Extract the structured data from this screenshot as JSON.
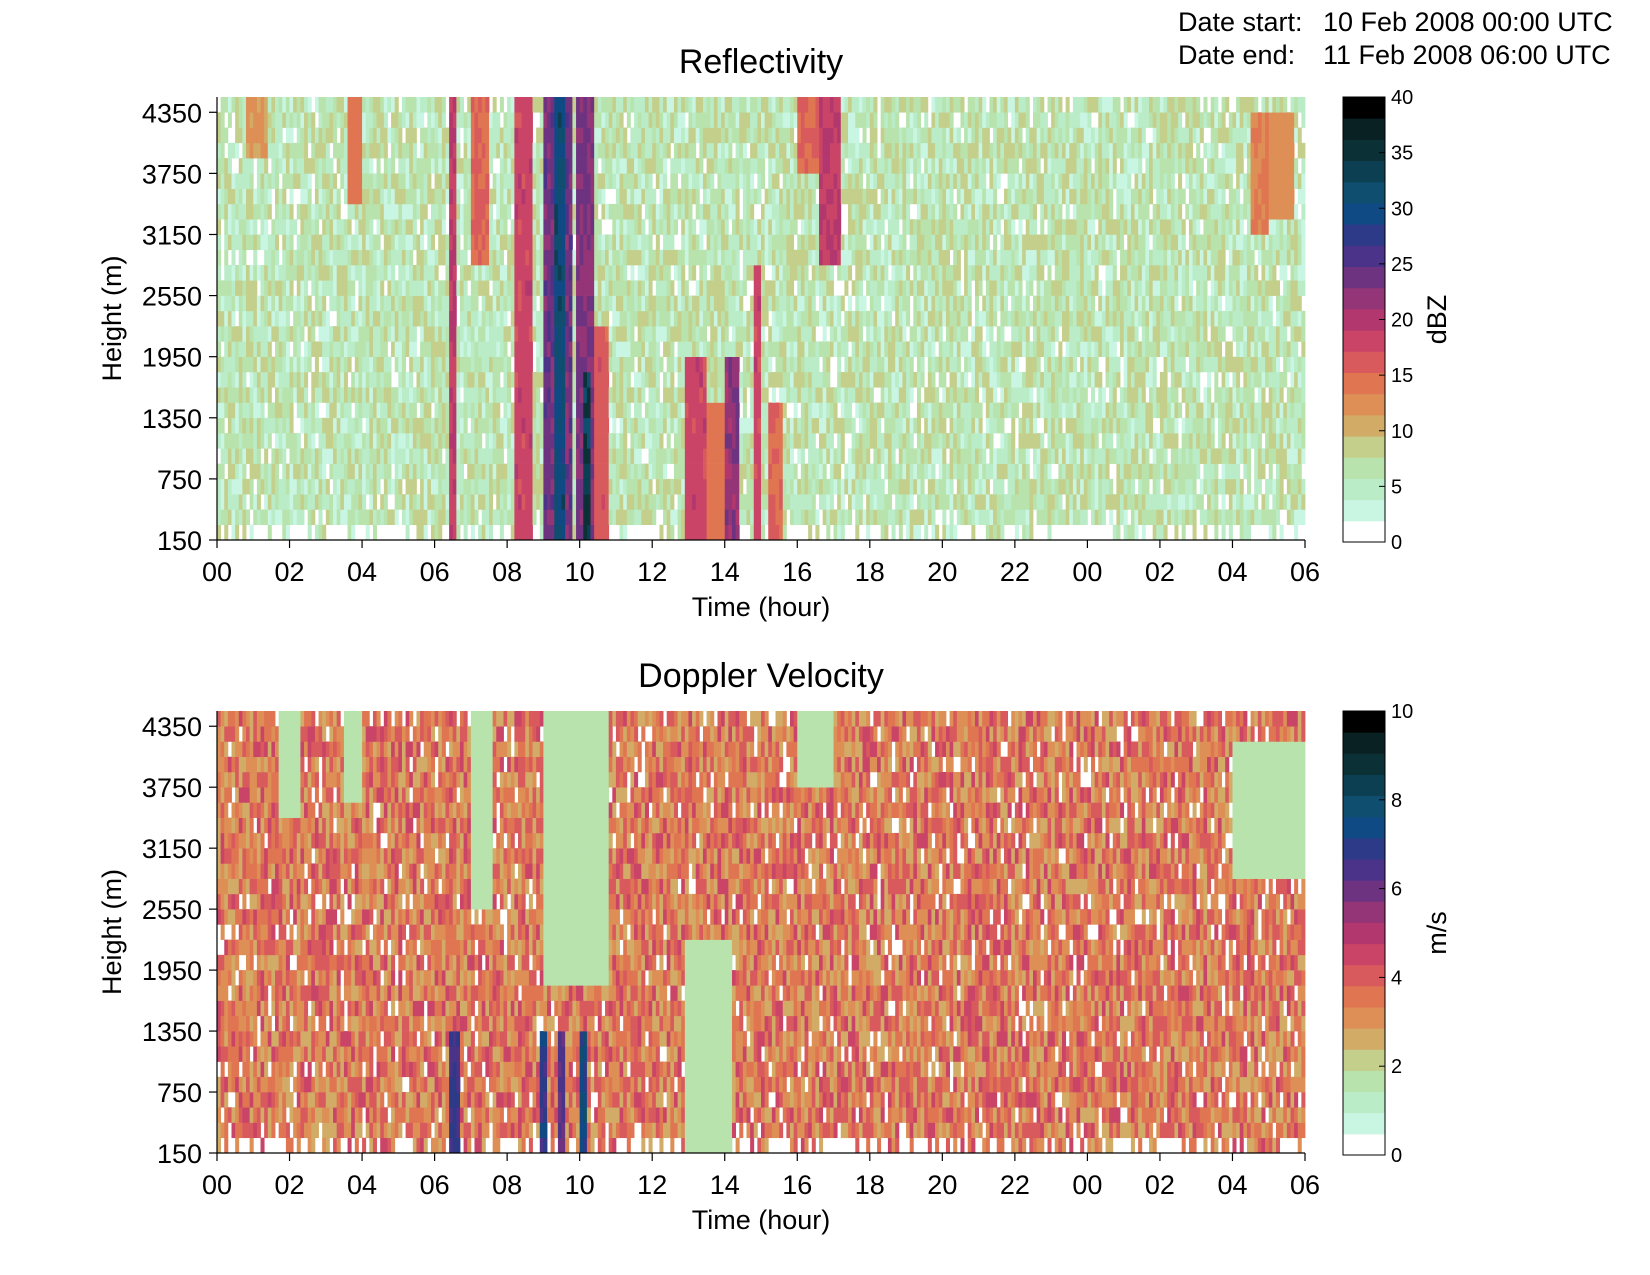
{
  "date_info": {
    "start_label": "Date start:",
    "start_value": "10 Feb 2008 00:00 UTC",
    "end_label": "Date end:",
    "end_value": "11 Feb 2008 06:00 UTC"
  },
  "colors": {
    "scale": [
      "#ffffff",
      "#c9f5e3",
      "#b9ecc7",
      "#b8e3ad",
      "#c4cf8b",
      "#d2ab67",
      "#dd8f55",
      "#e07552",
      "#d95a5c",
      "#c94466",
      "#b2376e",
      "#943577",
      "#6d3381",
      "#4b3389",
      "#2c3a88",
      "#104a85",
      "#0f4e6f",
      "#0d3f52",
      "#0b3036",
      "#0a2124",
      "#000000"
    ]
  },
  "chart_data": [
    {
      "type": "heatmap",
      "title": "Reflectivity",
      "xlabel": "Time (hour)",
      "ylabel": "Height (m)",
      "x_ticks": [
        "00",
        "02",
        "04",
        "06",
        "08",
        "10",
        "12",
        "14",
        "16",
        "18",
        "20",
        "22",
        "00",
        "02",
        "04",
        "06"
      ],
      "x_range_hours": [
        0,
        30
      ],
      "y_ticks": [
        150,
        750,
        1350,
        1950,
        2550,
        3150,
        3750,
        4350
      ],
      "y_range": [
        150,
        4500
      ],
      "colorbar": {
        "label": "dBZ",
        "ticks": [
          0,
          5,
          10,
          15,
          20,
          25,
          30,
          35,
          40
        ],
        "range": [
          0,
          40
        ],
        "levels": 20
      },
      "background_value_range": [
        1,
        8
      ],
      "features": [
        {
          "kind": "echo",
          "t_start": 0.8,
          "t_end": 1.4,
          "h_start": 3900,
          "h_end": 4500,
          "value": 10
        },
        {
          "kind": "echo",
          "t_start": 3.6,
          "t_end": 4.0,
          "h_start": 3500,
          "h_end": 4500,
          "value": 13
        },
        {
          "kind": "echo",
          "t_start": 6.4,
          "t_end": 6.6,
          "h_start": 150,
          "h_end": 4500,
          "value": 18
        },
        {
          "kind": "echo",
          "t_start": 7.0,
          "t_end": 7.5,
          "h_start": 2900,
          "h_end": 4500,
          "value": 14
        },
        {
          "kind": "echo",
          "t_start": 8.2,
          "t_end": 8.7,
          "h_start": 150,
          "h_end": 4500,
          "value": 17
        },
        {
          "kind": "echo",
          "t_start": 9.0,
          "t_end": 9.8,
          "h_start": 150,
          "h_end": 4500,
          "value": 23
        },
        {
          "kind": "echo",
          "t_start": 9.3,
          "t_end": 9.6,
          "h_start": 150,
          "h_end": 4500,
          "value": 30
        },
        {
          "kind": "echo",
          "t_start": 9.95,
          "t_end": 10.4,
          "h_start": 150,
          "h_end": 4500,
          "value": 22
        },
        {
          "kind": "echo",
          "t_start": 10.1,
          "t_end": 10.3,
          "h_start": 150,
          "h_end": 1800,
          "value": 33
        },
        {
          "kind": "echo",
          "t_start": 10.4,
          "t_end": 10.8,
          "h_start": 150,
          "h_end": 2200,
          "value": 15
        },
        {
          "kind": "echo",
          "t_start": 12.9,
          "t_end": 13.5,
          "h_start": 150,
          "h_end": 2000,
          "value": 17
        },
        {
          "kind": "echo",
          "t_start": 13.5,
          "t_end": 14.0,
          "h_start": 150,
          "h_end": 1500,
          "value": 13
        },
        {
          "kind": "echo",
          "t_start": 14.0,
          "t_end": 14.4,
          "h_start": 150,
          "h_end": 2000,
          "value": 21
        },
        {
          "kind": "echo",
          "t_start": 14.8,
          "t_end": 15.0,
          "h_start": 150,
          "h_end": 2900,
          "value": 17
        },
        {
          "kind": "echo",
          "t_start": 15.2,
          "t_end": 15.6,
          "h_start": 150,
          "h_end": 1500,
          "value": 14
        },
        {
          "kind": "echo",
          "t_start": 16.0,
          "t_end": 16.6,
          "h_start": 3800,
          "h_end": 4500,
          "value": 14
        },
        {
          "kind": "echo",
          "t_start": 16.6,
          "t_end": 17.2,
          "h_start": 2800,
          "h_end": 4500,
          "value": 18
        },
        {
          "kind": "echo",
          "t_start": 28.5,
          "t_end": 29.0,
          "h_start": 3150,
          "h_end": 4300,
          "value": 12
        },
        {
          "kind": "echo",
          "t_start": 29.0,
          "t_end": 29.7,
          "h_start": 3300,
          "h_end": 4300,
          "value": 11
        }
      ]
    },
    {
      "type": "heatmap",
      "title": "Doppler Velocity",
      "xlabel": "Time (hour)",
      "ylabel": "Height (m)",
      "x_ticks": [
        "00",
        "02",
        "04",
        "06",
        "08",
        "10",
        "12",
        "14",
        "16",
        "18",
        "20",
        "22",
        "00",
        "02",
        "04",
        "06"
      ],
      "x_range_hours": [
        0,
        30
      ],
      "y_ticks": [
        150,
        750,
        1350,
        1950,
        2550,
        3150,
        3750,
        4350
      ],
      "y_range": [
        150,
        4500
      ],
      "colorbar": {
        "label": "m/s",
        "ticks": [
          0,
          2,
          4,
          6,
          8,
          10
        ],
        "range": [
          0,
          10
        ],
        "levels": 20
      },
      "background_value_range": [
        2,
        4.3
      ],
      "features": [
        {
          "kind": "slow",
          "t_start": 1.7,
          "t_end": 2.3,
          "h_start": 3500,
          "h_end": 4500,
          "value": 1.2
        },
        {
          "kind": "slow",
          "t_start": 3.5,
          "t_end": 4.0,
          "h_start": 3600,
          "h_end": 4500,
          "value": 1.3
        },
        {
          "kind": "slow",
          "t_start": 7.0,
          "t_end": 7.6,
          "h_start": 2600,
          "h_end": 4500,
          "value": 1.3
        },
        {
          "kind": "slow",
          "t_start": 9.0,
          "t_end": 10.8,
          "h_start": 1800,
          "h_end": 4500,
          "value": 1.2
        },
        {
          "kind": "slow",
          "t_start": 12.9,
          "t_end": 14.2,
          "h_start": 150,
          "h_end": 2300,
          "value": 1.1
        },
        {
          "kind": "slow",
          "t_start": 16.0,
          "t_end": 17.0,
          "h_start": 3800,
          "h_end": 4500,
          "value": 1.3
        },
        {
          "kind": "slow",
          "t_start": 28.0,
          "t_end": 30.0,
          "h_start": 2900,
          "h_end": 4200,
          "value": 1.2
        },
        {
          "kind": "fast",
          "t_start": 6.4,
          "t_end": 6.7,
          "h_start": 150,
          "h_end": 1400,
          "value": 6.5
        },
        {
          "kind": "fast",
          "t_start": 8.9,
          "t_end": 9.1,
          "h_start": 150,
          "h_end": 1350,
          "value": 6.8
        },
        {
          "kind": "fast",
          "t_start": 9.4,
          "t_end": 9.6,
          "h_start": 150,
          "h_end": 1350,
          "value": 6.2
        },
        {
          "kind": "fast",
          "t_start": 10.0,
          "t_end": 10.2,
          "h_start": 150,
          "h_end": 1350,
          "value": 7.2
        }
      ]
    }
  ]
}
